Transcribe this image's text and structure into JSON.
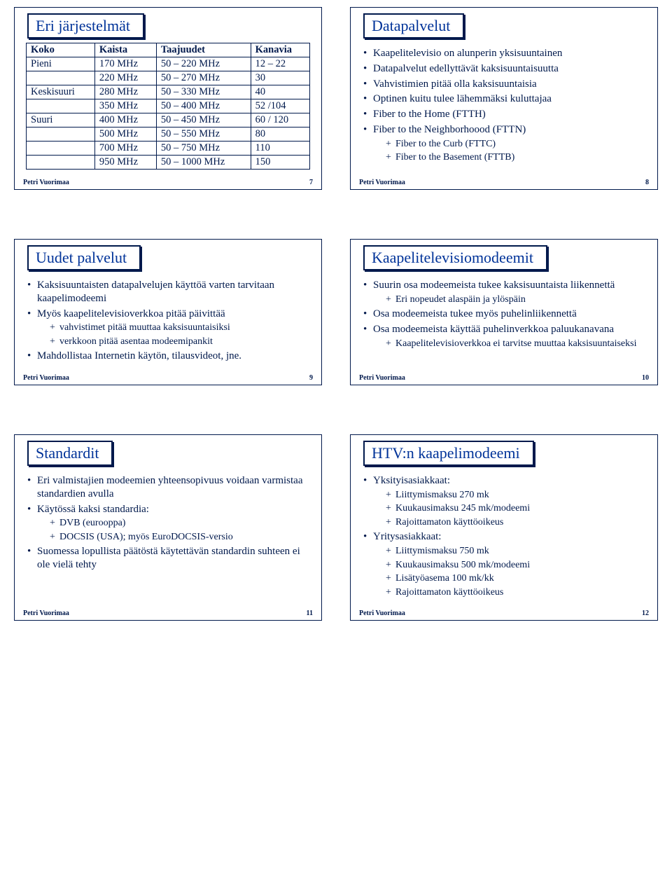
{
  "author": "Petri Vuorimaa",
  "slides": {
    "systems": {
      "title": "Eri järjestelmät",
      "num": "7",
      "table": {
        "headers": [
          "Koko",
          "Kaista",
          "Taajuudet",
          "Kanavia"
        ],
        "rows": [
          [
            "Pieni",
            "170 MHz",
            "50 – 220 MHz",
            "12 – 22"
          ],
          [
            "",
            "220 MHz",
            "50 – 270 MHz",
            "30"
          ],
          [
            "Keskisuuri",
            "280 MHz",
            "50 – 330 MHz",
            "40"
          ],
          [
            "",
            "350 MHz",
            "50 – 400 MHz",
            "52 /104"
          ],
          [
            "Suuri",
            "400 MHz",
            "50 – 450 MHz",
            "60 / 120"
          ],
          [
            "",
            "500 MHz",
            "50 – 550 MHz",
            "80"
          ],
          [
            "",
            "700 MHz",
            "50 – 750 MHz",
            "110"
          ],
          [
            "",
            "950 MHz",
            "50 – 1000 MHz",
            "150"
          ]
        ]
      }
    },
    "dataservices": {
      "title": "Datapalvelut",
      "num": "8",
      "items": [
        {
          "t": "Kaapelitelevisio on alunperin yksisuuntainen"
        },
        {
          "t": "Datapalvelut edellyttävät kaksisuuntaisuutta"
        },
        {
          "t": "Vahvistimien pitää olla kaksisuuntaisia"
        },
        {
          "t": "Optinen kuitu tulee lähemmäksi kuluttajaa"
        },
        {
          "t": "Fiber to the Home (FTTH)"
        },
        {
          "t": "Fiber to the Neighborhoood (FTTN)",
          "sub": [
            "Fiber to the Curb (FTTC)",
            "Fiber to the Basement (FTTB)"
          ]
        }
      ]
    },
    "newservices": {
      "title": "Uudet palvelut",
      "num": "9",
      "items": [
        {
          "t": "Kaksisuuntaisten datapalvelujen käyttöä varten tarvitaan kaapelimodeemi"
        },
        {
          "t": "Myös kaapelitelevisioverkkoa pitää päivittää",
          "sub": [
            "vahvistimet pitää muuttaa kaksisuuntaisiksi",
            "verkkoon pitää asentaa modeemipankit"
          ]
        },
        {
          "t": "Mahdollistaa Internetin käytön, tilausvideot, jne."
        }
      ]
    },
    "modems": {
      "title": "Kaapelitelevisiomodeemit",
      "num": "10",
      "items": [
        {
          "t": "Suurin osa modeemeista tukee kaksisuuntaista liikennettä",
          "sub": [
            "Eri nopeudet alaspäin ja ylöspäin"
          ]
        },
        {
          "t": "Osa modeemeista tukee myös puhelinliikennettä"
        },
        {
          "t": "Osa modeemeista käyttää puhelinverkkoa paluukanavana",
          "sub": [
            "Kaapelitelevisioverkkoa ei tarvitse muuttaa kaksisuuntaiseksi"
          ]
        }
      ]
    },
    "standards": {
      "title": "Standardit",
      "num": "11",
      "items": [
        {
          "t": "Eri valmistajien modeemien yhteensopivuus voidaan varmistaa standardien avulla"
        },
        {
          "t": "Käytössä kaksi standardia:",
          "sub": [
            "DVB (eurooppa)",
            "DOCSIS (USA); myös EuroDOCSIS-versio"
          ]
        },
        {
          "t": "Suomessa lopullista päätöstä käytettävän standardin suhteen ei ole vielä tehty"
        }
      ]
    },
    "htv": {
      "title": "HTV:n kaapelimodeemi",
      "num": "12",
      "items": [
        {
          "t": "Yksityisasiakkaat:",
          "sub": [
            "Liittymismaksu 270 mk",
            "Kuukausimaksu 245 mk/modeemi",
            "Rajoittamaton käyttöoikeus"
          ]
        },
        {
          "t": "Yritysasiakkaat:",
          "sub": [
            "Liittymismaksu 750 mk",
            "Kuukausimaksu 500 mk/modeemi",
            "Lisätyöasema 100 mk/kk",
            "Rajoittamaton käyttöoikeus"
          ]
        }
      ]
    }
  }
}
